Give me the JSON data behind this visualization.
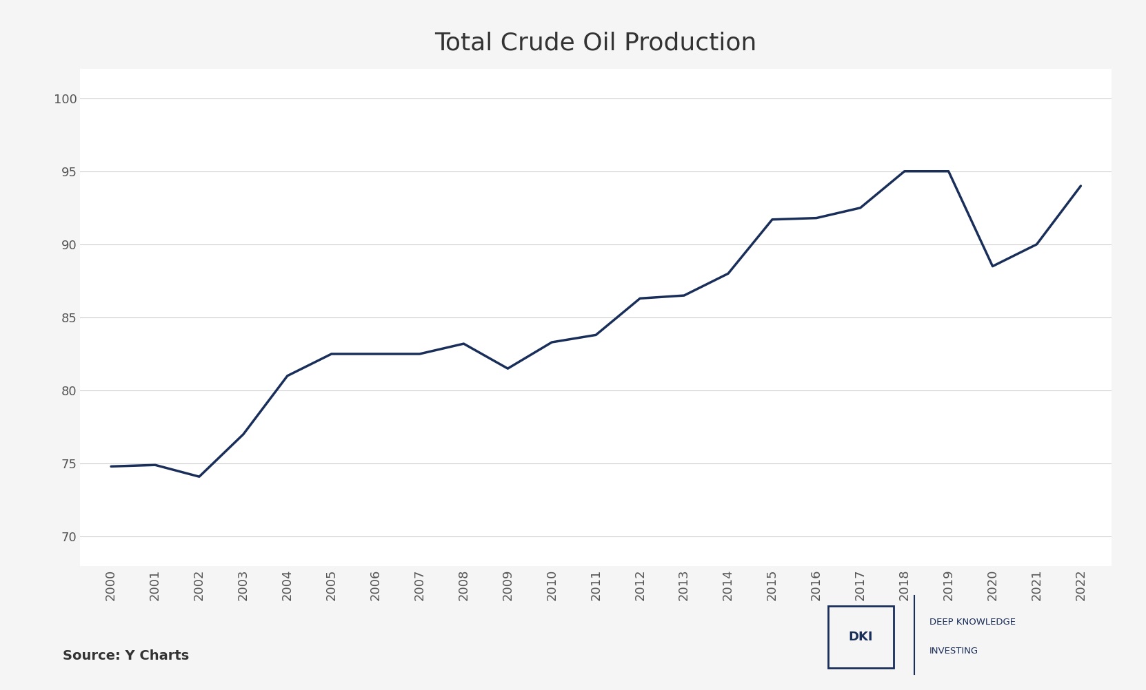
{
  "title": "Total Crude Oil Production",
  "title_fontsize": 26,
  "source_text": "Source: Y Charts",
  "years": [
    2000,
    2001,
    2002,
    2003,
    2004,
    2005,
    2006,
    2007,
    2008,
    2009,
    2010,
    2011,
    2012,
    2013,
    2014,
    2015,
    2016,
    2017,
    2018,
    2019,
    2020,
    2021,
    2022
  ],
  "values": [
    74.8,
    74.9,
    74.1,
    77.0,
    81.0,
    82.5,
    82.5,
    82.5,
    83.2,
    81.5,
    83.3,
    83.8,
    86.3,
    86.5,
    88.0,
    91.7,
    91.8,
    92.5,
    95.0,
    95.0,
    88.5,
    90.0,
    94.0
  ],
  "line_color": "#1a2e5a",
  "line_width": 2.5,
  "ylim": [
    68,
    102
  ],
  "yticks": [
    70,
    75,
    80,
    85,
    90,
    95,
    100
  ],
  "grid_color": "#cccccc",
  "background_color": "#f5f5f5",
  "plot_bg_color": "#ffffff",
  "tick_label_color": "#555555",
  "tick_fontsize": 13,
  "dki_box_color": "#1a2e5a",
  "dki_text": "DKI",
  "dki_label1": "DEEP KNOWLEDGE",
  "dki_label2": "INVESTING"
}
